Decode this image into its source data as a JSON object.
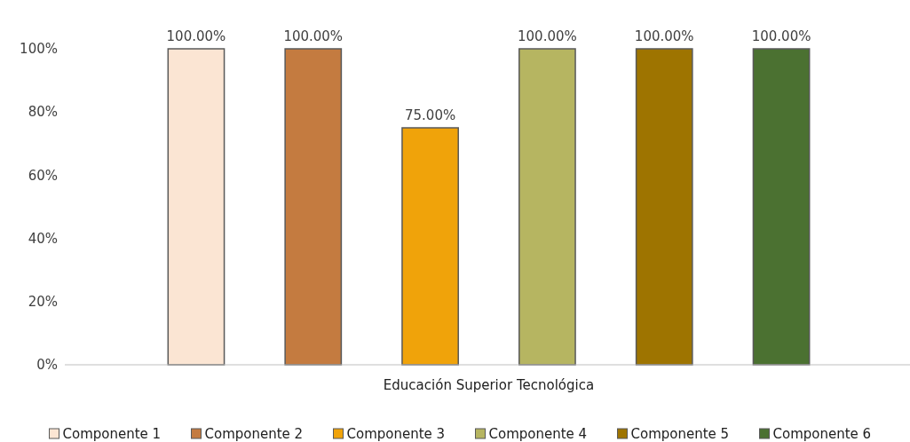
{
  "chart_data": {
    "type": "bar",
    "categories": [
      "Educación Superior Tecnológica"
    ],
    "series": [
      {
        "name": "Componente 1",
        "color": "#fbe5d3",
        "values": [
          100
        ],
        "value_labels": [
          "100.00%"
        ]
      },
      {
        "name": "Componente 2",
        "color": "#c47b40",
        "values": [
          100
        ],
        "value_labels": [
          "100.00%"
        ]
      },
      {
        "name": "Componente 3",
        "color": "#f0a30a",
        "values": [
          75
        ],
        "value_labels": [
          "75.00%"
        ]
      },
      {
        "name": "Componente 4",
        "color": "#b6b561",
        "values": [
          100
        ],
        "value_labels": [
          "100.00%"
        ]
      },
      {
        "name": "Componente 5",
        "color": "#9e7400",
        "values": [
          100
        ],
        "value_labels": [
          "100.00%"
        ]
      },
      {
        "name": "Componente 6",
        "color": "#4b7131",
        "values": [
          100
        ],
        "value_labels": [
          "100.00%"
        ]
      }
    ],
    "ylim": [
      0,
      100
    ],
    "yticks": [
      {
        "value": 0,
        "label": "0%"
      },
      {
        "value": 20,
        "label": "20%"
      },
      {
        "value": 40,
        "label": "40%"
      },
      {
        "value": 60,
        "label": "60%"
      },
      {
        "value": 80,
        "label": "80%"
      },
      {
        "value": 100,
        "label": "100%"
      }
    ],
    "grid": false,
    "legend": "bottom"
  }
}
